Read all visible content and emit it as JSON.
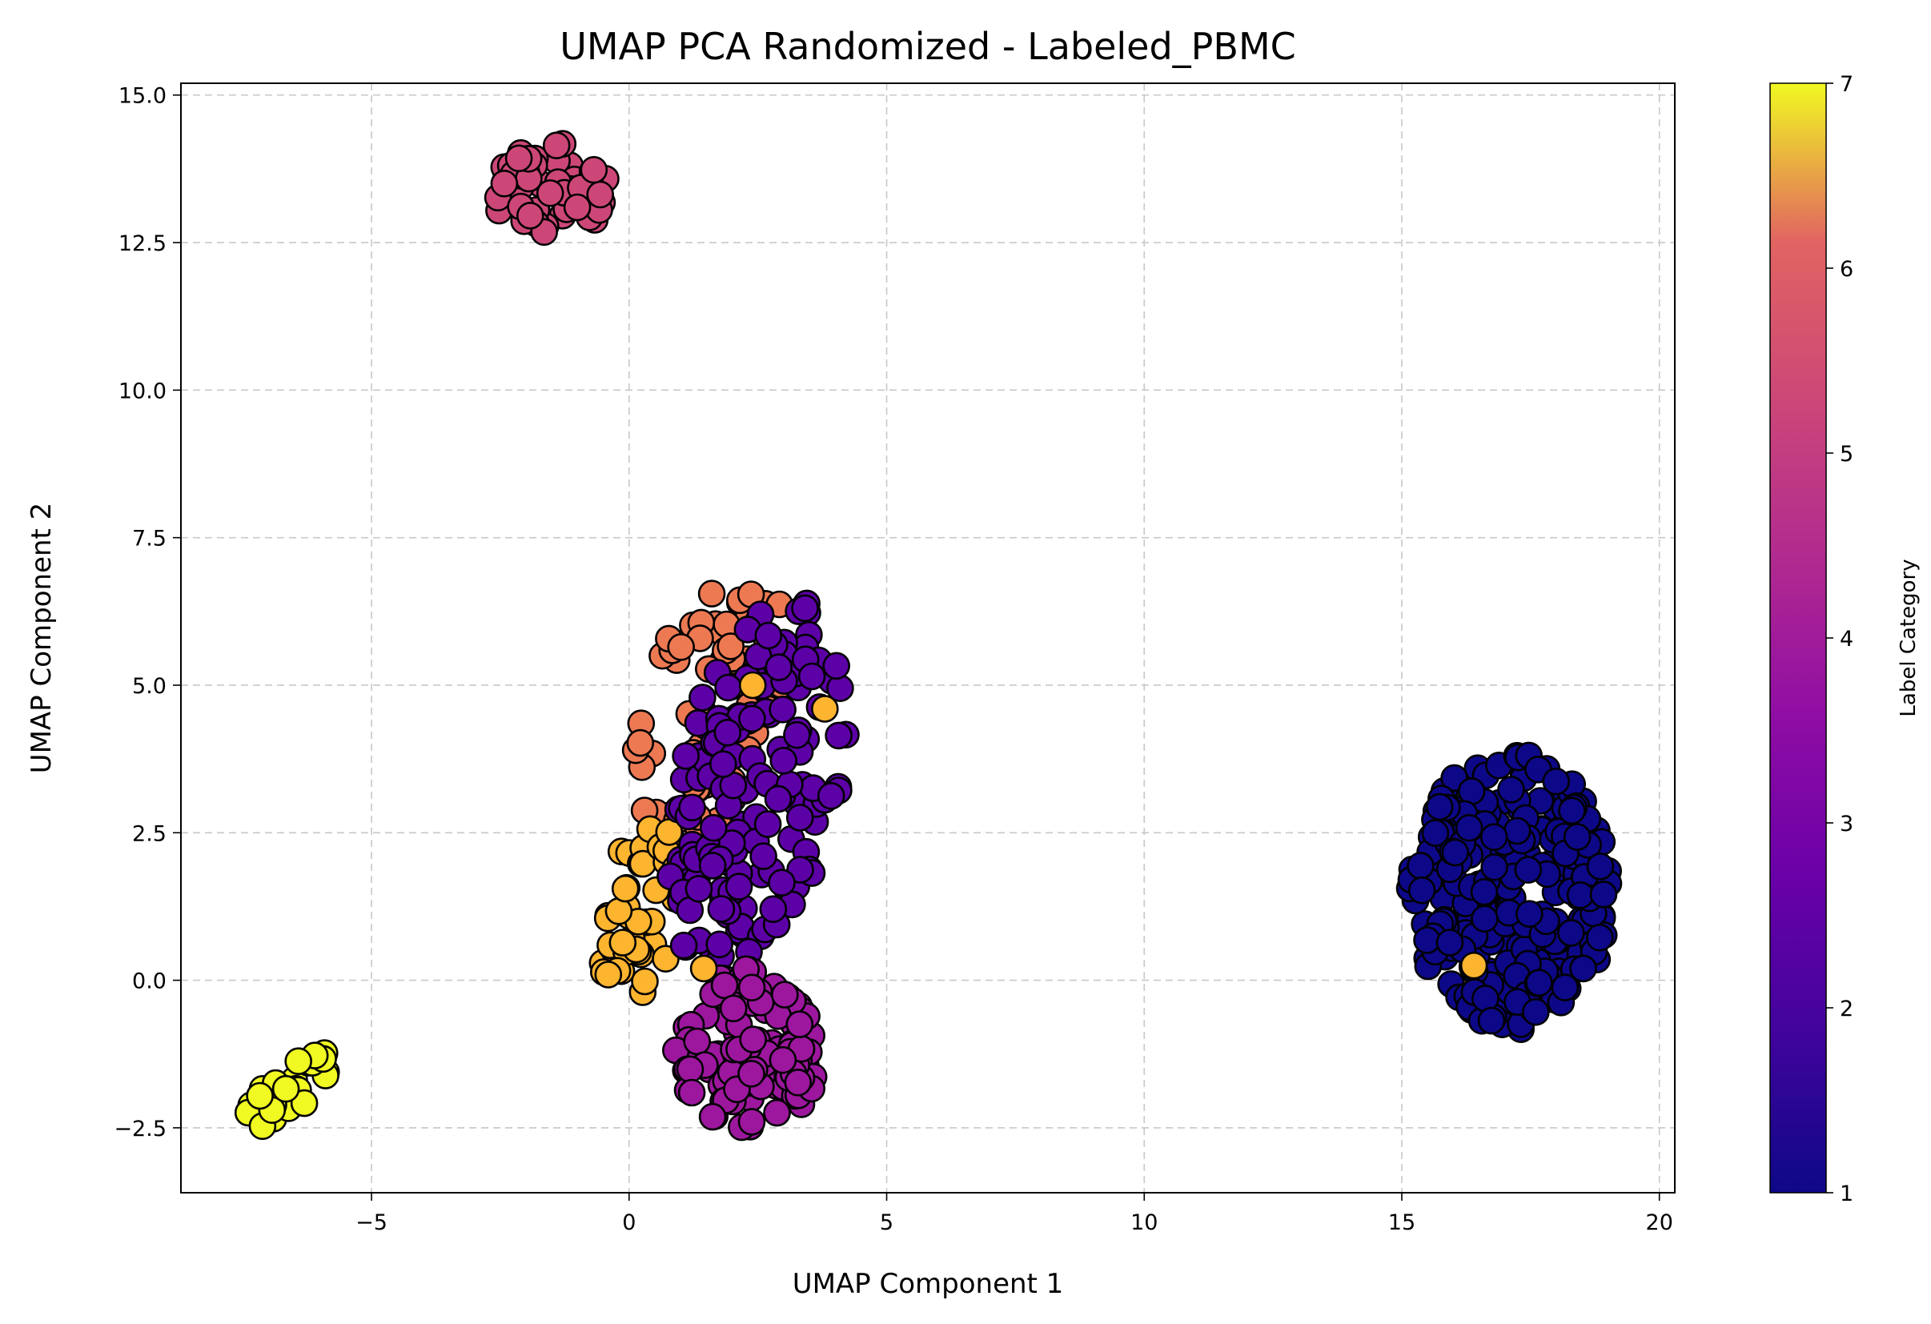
{
  "chart_data": {
    "type": "scatter",
    "title": "UMAP PCA Randomized - Labeled_PBMC",
    "xlabel": "UMAP Component 1",
    "ylabel": "UMAP Component 2",
    "xlim": [
      -8.7,
      20.3
    ],
    "ylim": [
      -3.6,
      15.2
    ],
    "x_ticks": [
      -5,
      0,
      5,
      10,
      15,
      20
    ],
    "x_tick_labels": [
      "−5",
      "0",
      "5",
      "10",
      "15",
      "20"
    ],
    "y_ticks": [
      -2.5,
      0.0,
      2.5,
      5.0,
      7.5,
      10.0,
      12.5,
      15.0
    ],
    "y_tick_labels": [
      "−2.5",
      "0.0",
      "2.5",
      "5.0",
      "7.5",
      "10.0",
      "12.5",
      "15.0"
    ],
    "grid": true,
    "colormap": "plasma",
    "colorbar": {
      "label": "Label Category",
      "range": [
        1,
        7
      ],
      "ticks": [
        1,
        2,
        3,
        4,
        5,
        6,
        7
      ],
      "tick_labels": [
        "1",
        "2",
        "3",
        "4",
        "5",
        "6",
        "7"
      ]
    },
    "marker": {
      "edgecolor": "#000000"
    },
    "clusters": [
      {
        "label": 4,
        "center": [
          -1.5,
          13.4
        ],
        "spread": [
          1.15,
          0.8
        ],
        "count": 60
      },
      {
        "label": 7,
        "center": [
          -6.6,
          -1.85
        ],
        "spread": [
          0.85,
          0.45
        ],
        "count": 28
      },
      {
        "label": 1,
        "center": [
          17.1,
          1.5
        ],
        "spread": [
          1.95,
          2.35
        ],
        "count": 260
      },
      {
        "label": 5,
        "center": [
          1.6,
          4.6
        ],
        "spread": [
          1.4,
          2.4
        ],
        "count": 75
      },
      {
        "label": 6,
        "center": [
          0.2,
          1.2
        ],
        "spread": [
          0.8,
          1.7
        ],
        "count": 45
      },
      {
        "label": 2,
        "center": [
          2.5,
          3.3
        ],
        "spread": [
          1.6,
          3.2
        ],
        "count": 150
      },
      {
        "label": 3,
        "center": [
          2.3,
          -1.2
        ],
        "spread": [
          1.4,
          1.4
        ],
        "count": 110
      }
    ],
    "points": [
      {
        "x": 16.4,
        "y": 0.25,
        "label": 6
      },
      {
        "x": 1.45,
        "y": 0.2,
        "label": 6
      },
      {
        "x": 3.8,
        "y": 4.6,
        "label": 6
      },
      {
        "x": 2.4,
        "y": 5.0,
        "label": 6
      }
    ]
  }
}
